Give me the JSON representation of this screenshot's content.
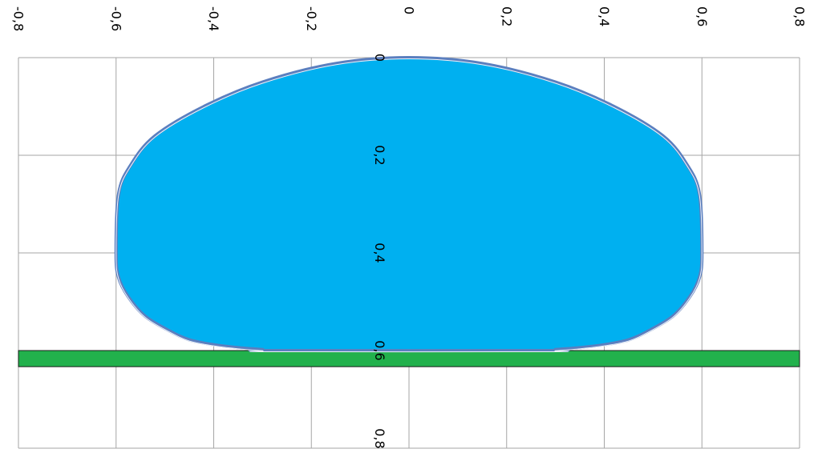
{
  "chart_data": {
    "type": "area",
    "title": "",
    "xlabel": "",
    "ylabel": "",
    "orientation": "rotated-90-clockwise",
    "grid": true,
    "legend": "none",
    "xlim": [
      -0.8,
      0.8
    ],
    "ylim": [
      0,
      0.8
    ],
    "x_ticks": [
      "-0,8",
      "-0,6",
      "-0,4",
      "-0,2",
      "0",
      "0,2",
      "0,4",
      "0,6",
      "0,8"
    ],
    "y_ticks": [
      "0",
      "0,2",
      "0,4",
      "0,6",
      "0,8"
    ],
    "colors": {
      "drop_fill": "#00b0f0",
      "drop_outline": "#5b7fbf",
      "surface_fill": "#22b14c",
      "surface_border": "#1a1a1a",
      "grid": "#a6a6a6"
    },
    "series": [
      {
        "kind": "droplet-profile",
        "x": [
          0,
          0.15,
          0.3,
          0.42,
          0.52,
          0.57,
          0.595,
          0.6,
          0.595,
          0.575,
          0.54,
          0.49,
          0.45,
          0.4,
          0.35,
          0.3,
          0.28,
          0.3,
          0.35,
          0.4,
          0.45,
          0.49,
          0.54,
          0.575,
          0.595,
          0.6,
          0.595,
          0.57,
          0.52,
          0.42,
          0.3,
          0.15,
          0
        ],
        "signed_x": [
          0,
          0.15,
          0.3,
          0.42,
          0.52,
          0.57,
          0.595,
          0.6,
          0.595,
          0.575,
          0.54,
          0.49,
          0.45,
          0.4,
          0.35,
          0.3,
          0.28,
          -0.28,
          -0.3,
          -0.35,
          -0.4,
          -0.45,
          -0.49,
          -0.54,
          -0.575,
          -0.595,
          -0.6,
          -0.595,
          -0.57,
          -0.52,
          -0.42,
          -0.3,
          -0.15
        ],
        "y": [
          0,
          0.012,
          0.05,
          0.1,
          0.16,
          0.22,
          0.28,
          0.4,
          0.45,
          0.49,
          0.53,
          0.56,
          0.578,
          0.588,
          0.594,
          0.598,
          0.6,
          0.6,
          0.598,
          0.594,
          0.588,
          0.578,
          0.56,
          0.53,
          0.49,
          0.45,
          0.4,
          0.28,
          0.22,
          0.16,
          0.1,
          0.05,
          0.012
        ]
      }
    ],
    "surface": {
      "y_from": 0.6,
      "y_to": 0.633,
      "x_from": -0.8,
      "x_to": 0.8
    }
  }
}
